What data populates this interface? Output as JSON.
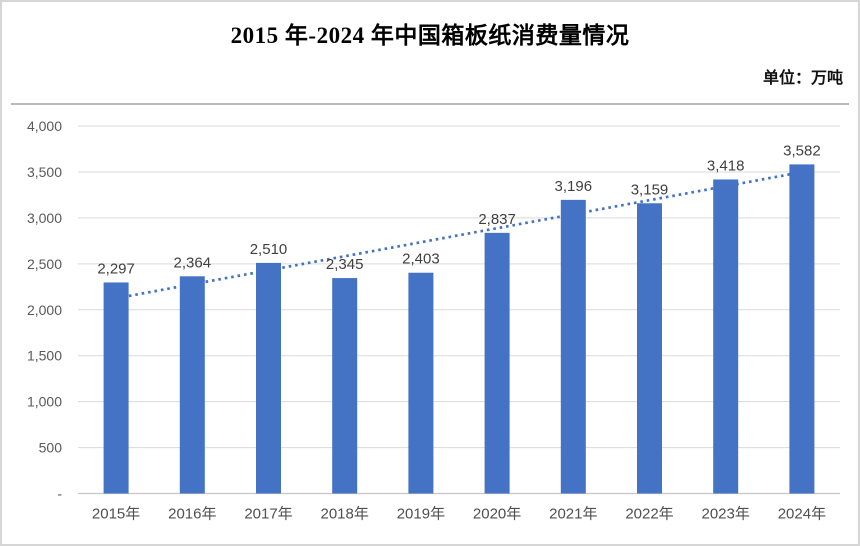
{
  "header": {
    "title": "2015 年-2024 年中国箱板纸消费量情况",
    "unit_label": "单位：万吨"
  },
  "chart_data": {
    "type": "bar",
    "title": "2015 年-2024 年中国箱板纸消费量情况",
    "unit": "单位：万吨",
    "categories": [
      "2015年",
      "2016年",
      "2017年",
      "2018年",
      "2019年",
      "2020年",
      "2021年",
      "2022年",
      "2023年",
      "2024年"
    ],
    "values": [
      2297,
      2364,
      2510,
      2345,
      2403,
      2837,
      3196,
      3159,
      3418,
      3582
    ],
    "value_labels": [
      "2,297",
      "2,364",
      "2,510",
      "2,345",
      "2,403",
      "2,837",
      "3,196",
      "3,159",
      "3,418",
      "3,582"
    ],
    "ylim": [
      0,
      4000
    ],
    "ytick_step": 500,
    "ytick_labels": [
      "-",
      "500",
      "1,000",
      "1,500",
      "2,000",
      "2,500",
      "3,000",
      "3,500",
      "4,000"
    ],
    "grid": true,
    "legend": "none",
    "trendline": {
      "type": "linear",
      "style": "dotted"
    },
    "colors": {
      "bar": "#4472C4",
      "trendline": "#4472C4",
      "gridline": "#D9D9D9",
      "axis_line": "#C6C6C6",
      "axis_text": "#595959",
      "xaxis_text": "#4F4F4F",
      "data_label": "#404040",
      "title_text": "#000000",
      "divider": "#B9B9B9",
      "border": "#D6D6D6"
    }
  }
}
